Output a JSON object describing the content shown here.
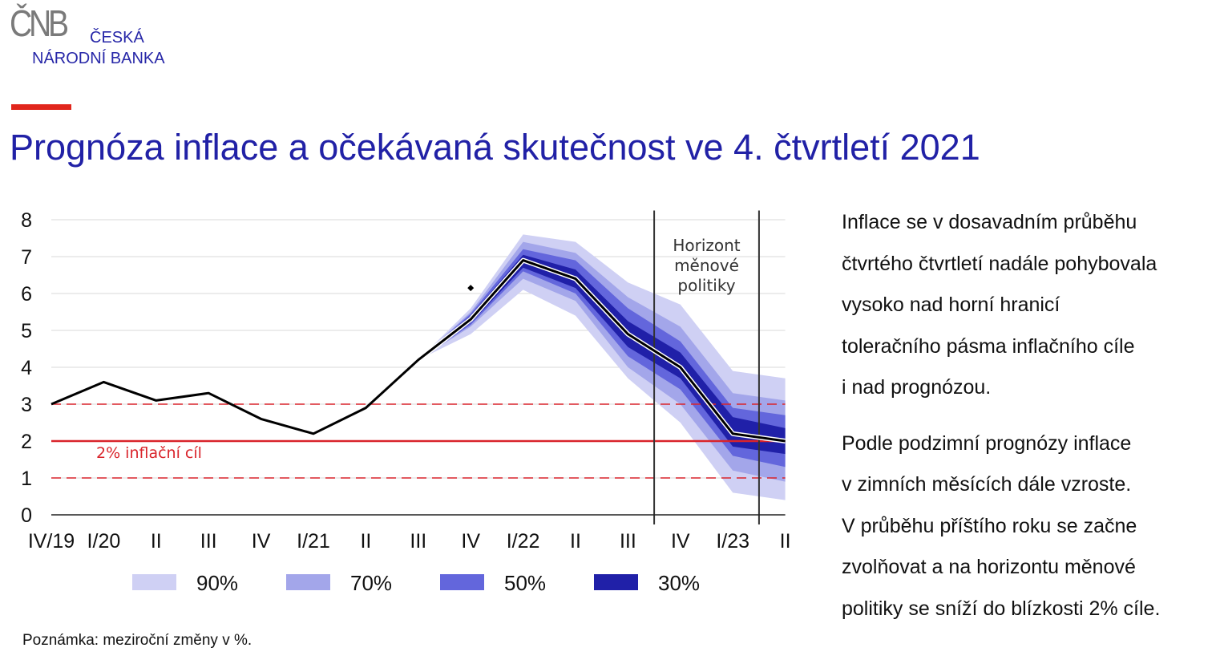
{
  "logo": {
    "mark": "ČNB",
    "line1": "ČESKÁ",
    "line2": "NÁRODNÍ BANKA"
  },
  "title": "Prognóza inflace a očekávaná skutečnost ve 4. čtvrtletí 2021",
  "colors": {
    "title": "#2121a6",
    "accent_red": "#e1261c",
    "band90": "#cfd0f4",
    "band70": "#a3a6ea",
    "band50": "#6366dc",
    "band30": "#2020a8",
    "target": "#d9242b"
  },
  "legend": [
    {
      "label": "90%",
      "color": "#cfd0f4"
    },
    {
      "label": "70%",
      "color": "#a3a6ea"
    },
    {
      "label": "50%",
      "color": "#6366dc"
    },
    {
      "label": "30%",
      "color": "#2020a8"
    }
  ],
  "chart_data": {
    "type": "area",
    "categories": [
      "IV/19",
      "I/20",
      "II",
      "III",
      "IV",
      "I/21",
      "II",
      "III",
      "IV",
      "I/22",
      "II",
      "III",
      "IV",
      "I/23",
      "II"
    ],
    "ylim": [
      0,
      8
    ],
    "yticks": [
      0,
      1,
      2,
      3,
      4,
      5,
      6,
      7,
      8
    ],
    "grid": true,
    "series": [
      {
        "name": "",
        "x": [
          0,
          1,
          2,
          3,
          4,
          5,
          6,
          7,
          8,
          9,
          10,
          11,
          12,
          13,
          14
        ],
        "values": [
          3.0,
          3.6,
          3.1,
          3.3,
          2.6,
          2.2,
          2.9,
          4.2,
          5.3,
          6.9,
          6.4,
          4.9,
          4.0,
          2.2,
          2.0
        ]
      }
    ],
    "fan": {
      "x": [
        7,
        8,
        9,
        10,
        11,
        12,
        13,
        14
      ],
      "bands": [
        {
          "name": "90%",
          "upper": [
            4.2,
            5.6,
            7.6,
            7.4,
            6.3,
            5.7,
            3.9,
            3.7
          ],
          "lower": [
            4.2,
            4.9,
            6.1,
            5.4,
            3.7,
            2.5,
            0.6,
            0.4
          ]
        },
        {
          "name": "70%",
          "upper": [
            4.2,
            5.5,
            7.4,
            7.1,
            5.9,
            5.1,
            3.3,
            3.1
          ],
          "lower": [
            4.2,
            5.1,
            6.4,
            5.8,
            4.0,
            3.0,
            1.2,
            0.9
          ]
        },
        {
          "name": "50%",
          "upper": [
            4.2,
            5.45,
            7.2,
            6.9,
            5.6,
            4.7,
            2.9,
            2.7
          ],
          "lower": [
            4.2,
            5.15,
            6.6,
            6.0,
            4.3,
            3.4,
            1.6,
            1.3
          ]
        },
        {
          "name": "30%",
          "upper": [
            4.2,
            5.4,
            7.05,
            6.65,
            5.25,
            4.4,
            2.65,
            2.35
          ],
          "lower": [
            4.2,
            5.2,
            6.7,
            6.15,
            4.55,
            3.7,
            1.85,
            1.65
          ]
        }
      ]
    },
    "point": {
      "x": 8,
      "y": 6.15
    },
    "reference_lines": [
      {
        "y": 2,
        "style": "solid",
        "label": "2% inflační cíl"
      },
      {
        "y": 3,
        "style": "dashed"
      },
      {
        "y": 1,
        "style": "dashed"
      }
    ],
    "vertical_lines": [
      11.5,
      13.5
    ],
    "annotation": "Horizont\nměnové\npolitiky"
  },
  "note": "Poznámka: meziroční změny v %.",
  "side": {
    "p1": "Inflace se v dosavadním průběhu\nčtvrtého čtvrtletí nadále pohybovala\nvysoko nad horní hranicí\ntoleračního pásma inflačního cíle\ni nad prognózou.",
    "p2": "Podle podzimní prognózy inflace\nv zimních měsících dále vzroste.\nV průběhu příštího roku se začne\nzvolňovat a na horizontu měnové\npolitiky se sníží do blízkosti 2% cíle."
  }
}
